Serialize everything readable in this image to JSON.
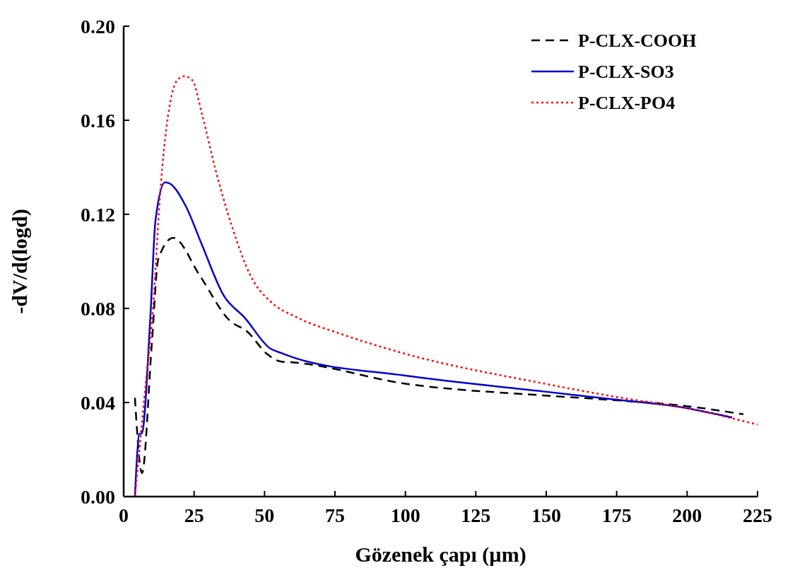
{
  "chart_data": {
    "type": "line",
    "xlabel": "Gözenek çapı (µm)",
    "ylabel": "-dV/d(logd)",
    "xlim": [
      0,
      225
    ],
    "xticks": [
      0,
      25,
      50,
      75,
      100,
      125,
      150,
      175,
      200,
      225
    ],
    "ylim": [
      0,
      0.2
    ],
    "yticks": [
      {
        "value": 0,
        "label": "0.00"
      },
      {
        "value": 0.04,
        "label": "0.04"
      },
      {
        "value": 0.08,
        "label": "0.08"
      },
      {
        "value": 0.12,
        "label": "0.12"
      },
      {
        "value": 0.16,
        "label": "0.16"
      },
      {
        "value": 0.2,
        "label": "0.20"
      }
    ],
    "grid": false,
    "legend": "top right",
    "series": [
      {
        "name": "P-CLX-COOH",
        "color": "#000000",
        "line_style": "dashed",
        "x": [
          4,
          6.5,
          10,
          12.3,
          17.6,
          27,
          37.5,
          44,
          51,
          56,
          60.6,
          100,
          149,
          176.5,
          198,
          220
        ],
        "values": [
          0.042,
          0.01,
          0.065,
          0.101,
          0.11,
          0.094,
          0.075,
          0.07,
          0.0605,
          0.0574,
          0.057,
          0.048,
          0.043,
          0.0408,
          0.0387,
          0.035
        ]
      },
      {
        "name": "P-CLX-SO3",
        "color": "#0000cc",
        "line_style": "solid",
        "x": [
          4,
          5.5,
          6.5,
          9.5,
          11.3,
          14.7,
          16.5,
          22,
          27.8,
          35.5,
          43,
          52,
          56,
          60.6,
          100,
          149,
          176.5,
          198,
          216
        ],
        "values": [
          0,
          0.0265,
          0.027,
          0.077,
          0.1175,
          0.1336,
          0.133,
          0.1236,
          0.107,
          0.0855,
          0.076,
          0.063,
          0.061,
          0.059,
          0.0514,
          0.0447,
          0.041,
          0.038,
          0.0336
        ]
      },
      {
        "name": "P-CLX-PO4",
        "color": "#ff0000",
        "line_style": "dotted",
        "x": [
          4,
          7.5,
          10.4,
          13.2,
          15.2,
          19,
          21.5,
          24.4,
          27.8,
          32.6,
          38.4,
          45,
          53,
          60.6,
          78,
          100,
          149,
          176.5,
          198,
          225
        ],
        "values": [
          0,
          0.044,
          0.08,
          0.133,
          0.157,
          0.177,
          0.1787,
          0.177,
          0.1626,
          0.139,
          0.115,
          0.094,
          0.082,
          0.0767,
          0.0688,
          0.0607,
          0.0481,
          0.042,
          0.038,
          0.0306
        ]
      }
    ]
  }
}
